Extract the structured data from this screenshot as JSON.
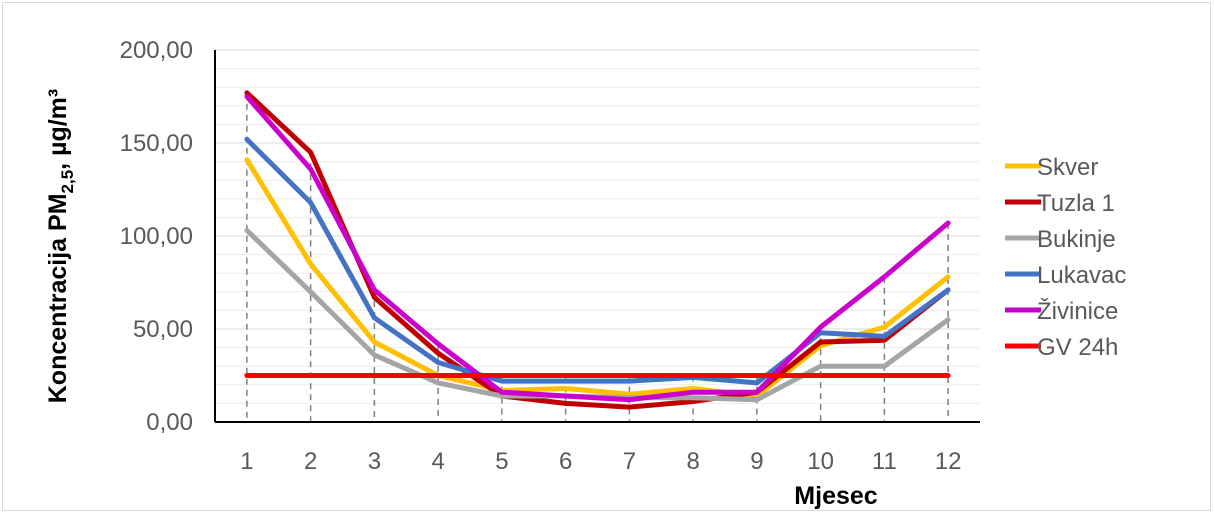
{
  "chart_data": {
    "type": "line",
    "xlabel": "Mjesec",
    "ylabel": {
      "prefix": "Koncentracija PM",
      "subscript": "2,5",
      "suffix": ",  µg/m³"
    },
    "ylim": [
      0,
      200
    ],
    "yticks": [
      "0,00",
      "50,00",
      "100,00",
      "150,00",
      "200,00"
    ],
    "categories": [
      "1",
      "2",
      "3",
      "4",
      "5",
      "6",
      "7",
      "8",
      "9",
      "10",
      "11",
      "12"
    ],
    "grid": "horizontal",
    "legend": "right",
    "series": [
      {
        "name": "Skver",
        "color": "#ffc000",
        "values": [
          141,
          85,
          43,
          25,
          17,
          18,
          15,
          18,
          14,
          41,
          51,
          78
        ]
      },
      {
        "name": "Tuzla 1",
        "color": "#c00000",
        "values": [
          177,
          145,
          67,
          37,
          14,
          10,
          8,
          11,
          16,
          43,
          44,
          71
        ]
      },
      {
        "name": "Bukinje",
        "color": "#a5a5a5",
        "values": [
          103,
          70,
          36,
          21,
          14,
          14,
          13,
          13,
          12,
          30,
          30,
          55
        ]
      },
      {
        "name": "Lukavac",
        "color": "#4472c4",
        "values": [
          152,
          118,
          56,
          32,
          22,
          22,
          22,
          24,
          21,
          48,
          46,
          71
        ]
      },
      {
        "name": "Živinice",
        "color": "#cc00cc",
        "values": [
          175,
          136,
          71,
          42,
          16,
          14,
          12,
          16,
          16,
          51,
          78,
          107
        ]
      },
      {
        "name": "GV 24h",
        "color": "#ff0000",
        "values": [
          25,
          25,
          25,
          25,
          25,
          25,
          25,
          25,
          25,
          25,
          25,
          25
        ]
      }
    ]
  }
}
